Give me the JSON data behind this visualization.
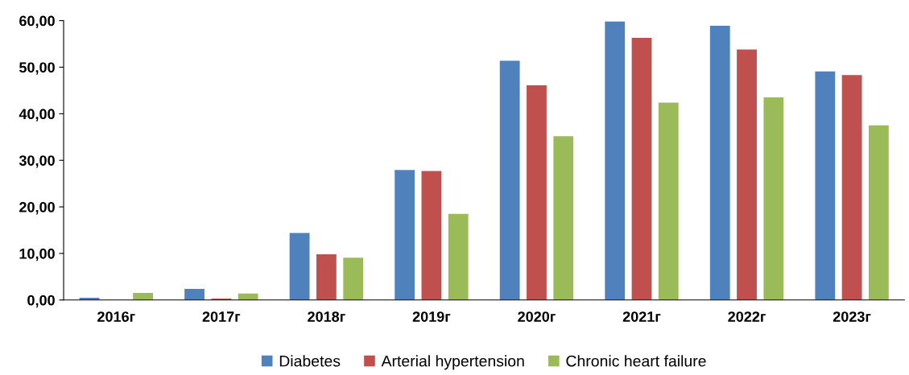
{
  "chart_data": {
    "type": "bar",
    "categories": [
      "2016г",
      "2017г",
      "2018г",
      "2019г",
      "2020г",
      "2021г",
      "2022г",
      "2023г"
    ],
    "series": [
      {
        "name": "Diabetes",
        "color": "#4f81bd",
        "values": [
          0.5,
          2.4,
          14.4,
          27.9,
          51.4,
          59.8,
          58.9,
          49.1
        ]
      },
      {
        "name": "Arterial hypertension",
        "color": "#c0504d",
        "values": [
          0,
          0.3,
          9.8,
          27.7,
          46.1,
          56.3,
          53.8,
          48.3
        ]
      },
      {
        "name": "Chronic heart failure",
        "color": "#9bbb59",
        "values": [
          1.5,
          1.4,
          9.1,
          18.5,
          35.2,
          42.4,
          43.5,
          37.5
        ]
      }
    ],
    "ylim": [
      0,
      60
    ],
    "yticks": [
      {
        "value": 0,
        "label": "0,00"
      },
      {
        "value": 10,
        "label": "10,00"
      },
      {
        "value": 20,
        "label": "20,00"
      },
      {
        "value": 30,
        "label": "30,00"
      },
      {
        "value": 40,
        "label": "40,00"
      },
      {
        "value": 50,
        "label": "50,00"
      },
      {
        "value": 60,
        "label": "60,00"
      }
    ],
    "grid": false,
    "legend": "bottom"
  }
}
